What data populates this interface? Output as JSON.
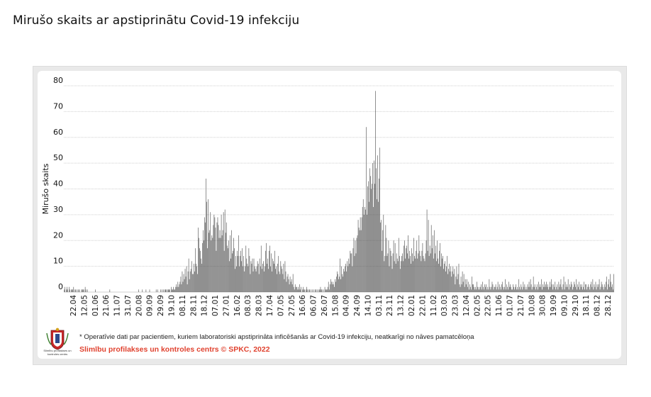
{
  "page": {
    "title": "Mirušo skaits ar apstiprinātu Covid-19 infekciju"
  },
  "footer": {
    "footnote": "* Operatīvie dati par pacientiem, kuriem laboratoriski apstiprināta inficēšanās ar Covid-19 infekciju, neatkarīgi no nāves pamatcēloņa",
    "credit": "Slimību profilakses un kontroles centrs © SPKC, 2022",
    "logo_caption": "Slimību profilakses un kontroles centrs"
  },
  "colors": {
    "bar": "#474747",
    "grid": "#cfcfcf",
    "credit": "#e0422f"
  },
  "chart_data": {
    "type": "bar",
    "title": "",
    "xlabel": "",
    "ylabel": "Mirušo skaits",
    "ylim": [
      0,
      80
    ],
    "y_ticks": [
      0,
      10,
      20,
      30,
      40,
      50,
      60,
      70,
      80
    ],
    "grid": true,
    "legend": "none",
    "x_tick_labels": [
      "22.04",
      "12.05",
      "01.06",
      "21.06",
      "11.07",
      "31.07",
      "20.08",
      "09.09",
      "29.09",
      "19.10",
      "08.11",
      "28.11",
      "18.12",
      "07.01",
      "27.01",
      "16.02",
      "08.03",
      "28.03",
      "17.04",
      "07.05",
      "27.05",
      "16.06",
      "06.07",
      "26.07",
      "15.08",
      "04.09",
      "24.09",
      "14.10",
      "03.11",
      "23.11",
      "13.12",
      "02.01",
      "22.01",
      "11.02",
      "03.03",
      "23.03",
      "12.04",
      "02.05",
      "22.05",
      "11.06",
      "01.07",
      "21.07",
      "10.08",
      "30.08",
      "19.09",
      "09.10",
      "29.10",
      "18.11",
      "08.12",
      "28.12"
    ],
    "series": [
      {
        "values": [
          1,
          2,
          0,
          1,
          2,
          1,
          0,
          2,
          1,
          0,
          1,
          1,
          1,
          2,
          0,
          1,
          1,
          0,
          1,
          0,
          1,
          1,
          0,
          0,
          1,
          1,
          1,
          1,
          0,
          2,
          1,
          0,
          1,
          0,
          0,
          0,
          0,
          0,
          0,
          0,
          0,
          0,
          0,
          1,
          0,
          0,
          0,
          0,
          0,
          0,
          0,
          0,
          0,
          0,
          0,
          0,
          0,
          0,
          0,
          0,
          0,
          0,
          0,
          1,
          0,
          0,
          0,
          0,
          0,
          0,
          0,
          0,
          0,
          0,
          0,
          0,
          0,
          0,
          0,
          0,
          0,
          0,
          0,
          0,
          0,
          0,
          0,
          0,
          0,
          0,
          0,
          0,
          0,
          0,
          0,
          0,
          0,
          0,
          0,
          0,
          0,
          0,
          0,
          1,
          0,
          0,
          0,
          0,
          1,
          0,
          0,
          0,
          0,
          1,
          0,
          0,
          0,
          0,
          1,
          0,
          0,
          0,
          0,
          0,
          0,
          0,
          0,
          1,
          0,
          1,
          0,
          0,
          0,
          1,
          0,
          1,
          0,
          1,
          0,
          1,
          1,
          1,
          0,
          1,
          1,
          1,
          1,
          0,
          2,
          1,
          1,
          2,
          1,
          1,
          2,
          3,
          2,
          4,
          2,
          3,
          4,
          6,
          3,
          8,
          4,
          7,
          5,
          9,
          6,
          10,
          3,
          8,
          13,
          5,
          8,
          9,
          12,
          7,
          7,
          11,
          8,
          17,
          11,
          10,
          7,
          25,
          21,
          17,
          16,
          13,
          11,
          19,
          24,
          20,
          29,
          27,
          44,
          35,
          17,
          36,
          23,
          24,
          31,
          20,
          22,
          21,
          26,
          30,
          29,
          25,
          16,
          27,
          29,
          26,
          21,
          24,
          21,
          30,
          22,
          24,
          31,
          16,
          32,
          23,
          27,
          18,
          17,
          20,
          12,
          22,
          13,
          24,
          15,
          16,
          21,
          17,
          9,
          14,
          10,
          16,
          14,
          22,
          10,
          14,
          16,
          12,
          17,
          10,
          14,
          8,
          10,
          18,
          13,
          11,
          10,
          17,
          14,
          7,
          12,
          11,
          13,
          8,
          13,
          10,
          9,
          8,
          10,
          12,
          11,
          7,
          13,
          10,
          18,
          9,
          11,
          12,
          8,
          10,
          16,
          19,
          11,
          13,
          9,
          16,
          18,
          10,
          15,
          8,
          13,
          12,
          11,
          16,
          9,
          10,
          7,
          11,
          14,
          8,
          7,
          12,
          10,
          9,
          7,
          11,
          5,
          12,
          8,
          4,
          6,
          7,
          5,
          3,
          6,
          4,
          5,
          3,
          7,
          2,
          1,
          3,
          2,
          2,
          1,
          2,
          1,
          3,
          1,
          2,
          0,
          1,
          2,
          1,
          1,
          0,
          1,
          2,
          1,
          0,
          1,
          1,
          0,
          1,
          0,
          1,
          0,
          1,
          0,
          1,
          1,
          0,
          1,
          0,
          1,
          1,
          2,
          1,
          1,
          0,
          1,
          0,
          2,
          1,
          1,
          1,
          2,
          4,
          1,
          3,
          5,
          4,
          3,
          4,
          3,
          2,
          5,
          4,
          6,
          8,
          7,
          5,
          6,
          13,
          5,
          10,
          7,
          6,
          9,
          8,
          10,
          11,
          8,
          12,
          10,
          13,
          11,
          16,
          15,
          15,
          10,
          17,
          21,
          14,
          20,
          15,
          21,
          22,
          28,
          25,
          24,
          29,
          24,
          29,
          33,
          36,
          30,
          33,
          32,
          64,
          30,
          41,
          43,
          35,
          48,
          45,
          40,
          42,
          50,
          33,
          51,
          42,
          78,
          48,
          36,
          53,
          35,
          44,
          56,
          27,
          28,
          16,
          24,
          30,
          12,
          14,
          26,
          21,
          14,
          15,
          20,
          10,
          17,
          16,
          14,
          9,
          15,
          20,
          12,
          19,
          11,
          15,
          13,
          12,
          21,
          14,
          9,
          12,
          14,
          15,
          12,
          18,
          20,
          13,
          17,
          18,
          15,
          22,
          13,
          16,
          14,
          11,
          17,
          15,
          12,
          21,
          14,
          13,
          16,
          20,
          13,
          15,
          22,
          16,
          14,
          12,
          16,
          19,
          14,
          13,
          12,
          15,
          20,
          32,
          16,
          28,
          14,
          18,
          15,
          26,
          17,
          22,
          13,
          24,
          15,
          18,
          12,
          20,
          13,
          11,
          16,
          19,
          10,
          15,
          13,
          14,
          9,
          11,
          12,
          8,
          10,
          14,
          7,
          9,
          11,
          8,
          10,
          6,
          8,
          10,
          7,
          9,
          3,
          6,
          10,
          5,
          7,
          11,
          3,
          2,
          6,
          3,
          8,
          4,
          7,
          2,
          5,
          3,
          5,
          2,
          4,
          1,
          3,
          2,
          1,
          6,
          3,
          3,
          2,
          1,
          2,
          1,
          4,
          2,
          1,
          2,
          1,
          2,
          3,
          1,
          4,
          2,
          1,
          3,
          2,
          3,
          1,
          2,
          1,
          5,
          2,
          1,
          2,
          4,
          3,
          1,
          2,
          2,
          3,
          1,
          2,
          4,
          1,
          3,
          2,
          1,
          3,
          4,
          2,
          1,
          2,
          5,
          1,
          3,
          2,
          1,
          4,
          2,
          3,
          2,
          1,
          1,
          3,
          2,
          1,
          2,
          3,
          1,
          2,
          1,
          5,
          2,
          1,
          3,
          2,
          1,
          4,
          2,
          3,
          1,
          2,
          1,
          3,
          2,
          4,
          2,
          5,
          3,
          1,
          2,
          6,
          2,
          3,
          1,
          2,
          3,
          1,
          4,
          2,
          3,
          2,
          5,
          1,
          3,
          2,
          4,
          2,
          3,
          4,
          2,
          3,
          1,
          2,
          4,
          2,
          5,
          3,
          1,
          3,
          2,
          4,
          1,
          2,
          3,
          1,
          4,
          2,
          3,
          5,
          2,
          1,
          3,
          6,
          1,
          4,
          2,
          3,
          2,
          5,
          1,
          3,
          2,
          4,
          3,
          1,
          2,
          4,
          3,
          2,
          5,
          1,
          3,
          2,
          4,
          1,
          3,
          2,
          3,
          1,
          2,
          4,
          1,
          3,
          3,
          1,
          2,
          3,
          2,
          1,
          3,
          4,
          2,
          5,
          1,
          3,
          2,
          4,
          1,
          3,
          2,
          3,
          5,
          1,
          2,
          4,
          3,
          2,
          1,
          3,
          2,
          4,
          6,
          1,
          3,
          5,
          2,
          7,
          4,
          2,
          3,
          1,
          7
        ]
      }
    ]
  }
}
